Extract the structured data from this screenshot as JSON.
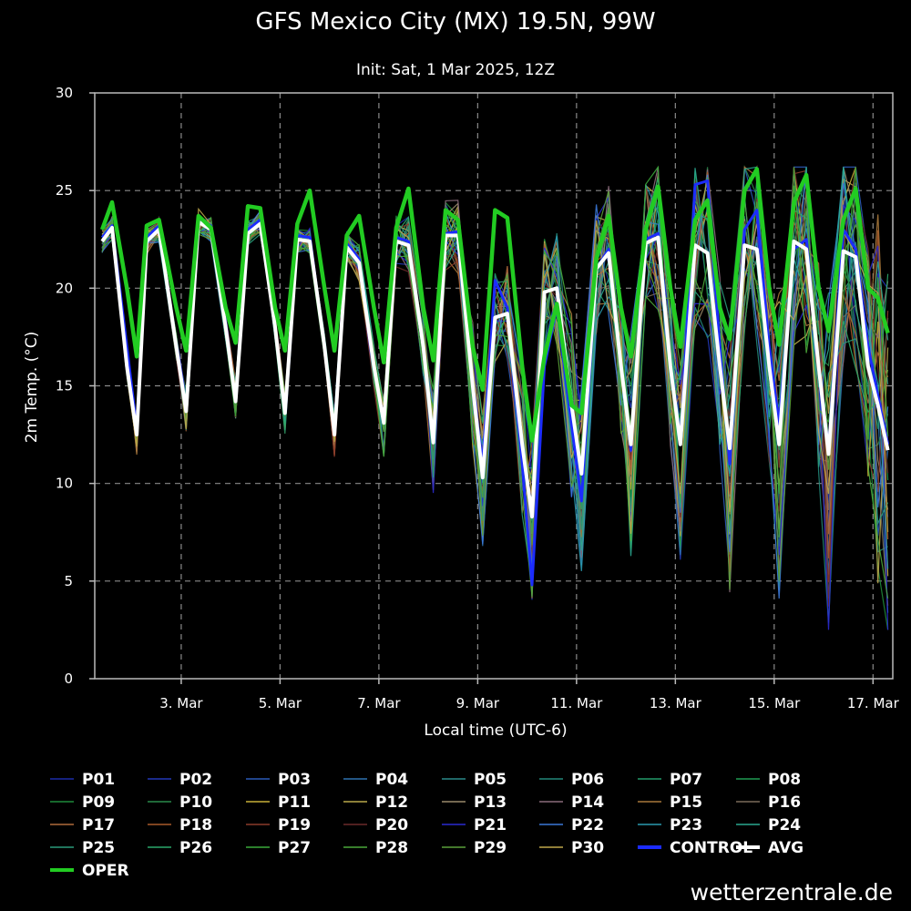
{
  "chart_data": {
    "type": "line",
    "title": "GFS Mexico City (MX) 19.5N, 99W",
    "subtitle": "Init: Sat, 1 Mar 2025, 12Z",
    "xlabel": "Local time (UTC-6)",
    "ylabel": "2m Temp. (°C)",
    "ylim": [
      0,
      30
    ],
    "xlim": [
      1.25,
      17.4
    ],
    "grid": true,
    "legend_placement": "bottom",
    "y_ticks": [
      "0",
      "5",
      "10",
      "15",
      "20",
      "25",
      "30"
    ],
    "x_ticks": [
      {
        "x": 3,
        "label": "3. Mar"
      },
      {
        "x": 5,
        "label": "5. Mar"
      },
      {
        "x": 7,
        "label": "7. Mar"
      },
      {
        "x": 9,
        "label": "9. Mar"
      },
      {
        "x": 11,
        "label": "11. Mar"
      },
      {
        "x": 13,
        "label": "13. Mar"
      },
      {
        "x": 15,
        "label": "15. Mar"
      },
      {
        "x": 17,
        "label": "17. Mar"
      }
    ],
    "x_grid": [
      3,
      5,
      7,
      9,
      11,
      13,
      15,
      17
    ],
    "series": [
      {
        "name": "AVG",
        "color": "#ffffff",
        "points": [
          [
            1.4,
            22.4
          ],
          [
            1.6,
            23.1
          ],
          [
            1.9,
            16
          ],
          [
            2.1,
            12.5
          ],
          [
            2.3,
            22.4
          ],
          [
            2.55,
            23.0
          ],
          [
            2.9,
            17
          ],
          [
            3.1,
            13.7
          ],
          [
            3.35,
            23.4
          ],
          [
            3.6,
            23
          ],
          [
            3.9,
            18
          ],
          [
            4.1,
            14.2
          ],
          [
            4.35,
            22.8
          ],
          [
            4.6,
            23.3
          ],
          [
            4.9,
            18
          ],
          [
            5.1,
            13.6
          ],
          [
            5.35,
            22.5
          ],
          [
            5.6,
            22.4
          ],
          [
            5.9,
            17
          ],
          [
            6.1,
            12.5
          ],
          [
            6.35,
            22.1
          ],
          [
            6.6,
            21.3
          ],
          [
            6.9,
            16
          ],
          [
            7.1,
            13.1
          ],
          [
            7.35,
            22.4
          ],
          [
            7.6,
            22.2
          ],
          [
            7.9,
            17
          ],
          [
            8.1,
            12.1
          ],
          [
            8.35,
            22.7
          ],
          [
            8.6,
            22.7
          ],
          [
            8.9,
            15
          ],
          [
            9.1,
            10.3
          ],
          [
            9.35,
            18.5
          ],
          [
            9.6,
            18.7
          ],
          [
            9.9,
            12
          ],
          [
            10.1,
            8.3
          ],
          [
            10.35,
            19.8
          ],
          [
            10.6,
            20
          ],
          [
            10.9,
            14
          ],
          [
            11.1,
            10.5
          ],
          [
            11.4,
            21
          ],
          [
            11.65,
            21.8
          ],
          [
            11.9,
            16
          ],
          [
            12.1,
            12
          ],
          [
            12.4,
            22.3
          ],
          [
            12.65,
            22.6
          ],
          [
            12.9,
            16
          ],
          [
            13.1,
            12
          ],
          [
            13.4,
            22.2
          ],
          [
            13.65,
            21.8
          ],
          [
            13.9,
            16
          ],
          [
            14.1,
            11.8
          ],
          [
            14.4,
            22.2
          ],
          [
            14.65,
            22
          ],
          [
            14.9,
            16
          ],
          [
            15.1,
            12
          ],
          [
            15.4,
            22.4
          ],
          [
            15.65,
            22
          ],
          [
            15.9,
            16
          ],
          [
            16.1,
            11.5
          ],
          [
            16.4,
            21.9
          ],
          [
            16.65,
            21.6
          ],
          [
            16.9,
            16
          ],
          [
            17.1,
            14
          ],
          [
            17.3,
            11.7
          ]
        ]
      },
      {
        "name": "OPER",
        "color": "#22cc22",
        "points": [
          [
            1.4,
            23
          ],
          [
            1.6,
            24.4
          ],
          [
            1.9,
            20
          ],
          [
            2.1,
            16.5
          ],
          [
            2.3,
            23.2
          ],
          [
            2.55,
            23.5
          ],
          [
            2.9,
            19
          ],
          [
            3.1,
            16.8
          ],
          [
            3.35,
            23.7
          ],
          [
            3.6,
            23.1
          ],
          [
            3.9,
            19
          ],
          [
            4.1,
            17.2
          ],
          [
            4.35,
            24.2
          ],
          [
            4.6,
            24.1
          ],
          [
            4.9,
            19
          ],
          [
            5.1,
            16.8
          ],
          [
            5.35,
            23.3
          ],
          [
            5.6,
            25
          ],
          [
            5.9,
            20
          ],
          [
            6.1,
            16.8
          ],
          [
            6.35,
            22.7
          ],
          [
            6.6,
            23.7
          ],
          [
            6.9,
            19
          ],
          [
            7.1,
            16.2
          ],
          [
            7.35,
            23.1
          ],
          [
            7.6,
            25.1
          ],
          [
            7.9,
            19
          ],
          [
            8.1,
            16.3
          ],
          [
            8.35,
            24
          ],
          [
            8.6,
            23.5
          ],
          [
            8.9,
            17
          ],
          [
            9.1,
            14.8
          ],
          [
            9.35,
            24
          ],
          [
            9.6,
            23.6
          ],
          [
            9.9,
            16
          ],
          [
            10.1,
            12.2
          ],
          [
            10.35,
            16.5
          ],
          [
            10.6,
            19.2
          ],
          [
            10.9,
            14
          ],
          [
            11.1,
            13.6
          ],
          [
            11.4,
            21.5
          ],
          [
            11.65,
            23.7
          ],
          [
            11.9,
            19
          ],
          [
            12.1,
            16.5
          ],
          [
            12.4,
            23
          ],
          [
            12.65,
            25.2
          ],
          [
            12.9,
            20
          ],
          [
            13.1,
            17
          ],
          [
            13.4,
            23.5
          ],
          [
            13.65,
            24.5
          ],
          [
            13.9,
            19
          ],
          [
            14.1,
            17.4
          ],
          [
            14.4,
            25
          ],
          [
            14.65,
            26.1
          ],
          [
            14.9,
            20
          ],
          [
            15.1,
            17.1
          ],
          [
            15.4,
            24.4
          ],
          [
            15.65,
            25.8
          ],
          [
            15.9,
            20
          ],
          [
            16.1,
            17.8
          ],
          [
            16.4,
            23.5
          ],
          [
            16.65,
            25.1
          ],
          [
            16.9,
            20
          ],
          [
            17.1,
            19.5
          ],
          [
            17.3,
            17.7
          ]
        ]
      },
      {
        "name": "CONTROL",
        "color": "#1c2cff",
        "points": [
          [
            1.4,
            22.6
          ],
          [
            1.6,
            23.2
          ],
          [
            1.9,
            17
          ],
          [
            2.1,
            12.8
          ],
          [
            2.3,
            22.6
          ],
          [
            2.55,
            23.2
          ],
          [
            2.9,
            17
          ],
          [
            3.1,
            13.8
          ],
          [
            3.35,
            23.6
          ],
          [
            3.6,
            23.2
          ],
          [
            3.9,
            18
          ],
          [
            4.1,
            14.3
          ],
          [
            4.35,
            23
          ],
          [
            4.6,
            23.5
          ],
          [
            4.9,
            18
          ],
          [
            5.1,
            13.7
          ],
          [
            5.35,
            22.7
          ],
          [
            5.6,
            22.6
          ],
          [
            5.9,
            17
          ],
          [
            6.1,
            12.6
          ],
          [
            6.35,
            22.3
          ],
          [
            6.6,
            21.5
          ],
          [
            6.9,
            16
          ],
          [
            7.1,
            13.2
          ],
          [
            7.35,
            22.6
          ],
          [
            7.6,
            22.4
          ],
          [
            7.9,
            17
          ],
          [
            8.1,
            12.2
          ],
          [
            8.35,
            22.8
          ],
          [
            8.6,
            22.9
          ],
          [
            8.9,
            15
          ],
          [
            9.1,
            11
          ],
          [
            9.35,
            20.4
          ],
          [
            9.6,
            19
          ],
          [
            9.9,
            11
          ],
          [
            10.1,
            4.8
          ],
          [
            10.35,
            16
          ],
          [
            10.6,
            19
          ],
          [
            10.9,
            13
          ],
          [
            11.1,
            9.1
          ],
          [
            11.4,
            21
          ],
          [
            11.65,
            22
          ],
          [
            11.9,
            16
          ],
          [
            12.1,
            11.7
          ],
          [
            12.4,
            22.5
          ],
          [
            12.65,
            22.8
          ],
          [
            12.9,
            16
          ],
          [
            13.1,
            12
          ],
          [
            13.4,
            25.3
          ],
          [
            13.65,
            25.5
          ],
          [
            13.9,
            17
          ],
          [
            14.1,
            11
          ],
          [
            14.4,
            23
          ],
          [
            14.65,
            24
          ],
          [
            14.9,
            17
          ],
          [
            15.1,
            13
          ],
          [
            15.4,
            22
          ],
          [
            15.65,
            22.5
          ],
          [
            15.9,
            16
          ],
          [
            16.1,
            11.8
          ],
          [
            16.4,
            23
          ],
          [
            16.65,
            22
          ],
          [
            16.9,
            17
          ],
          [
            17.1,
            14.5
          ],
          [
            17.3,
            12
          ]
        ]
      }
    ],
    "members": [
      "P01",
      "P02",
      "P03",
      "P04",
      "P05",
      "P06",
      "P07",
      "P08",
      "P09",
      "P10",
      "P11",
      "P12",
      "P13",
      "P14",
      "P15",
      "P16",
      "P17",
      "P18",
      "P19",
      "P20",
      "P21",
      "P22",
      "P23",
      "P24",
      "P25",
      "P26",
      "P27",
      "P28",
      "P29",
      "P30"
    ],
    "member_colors": [
      "#1c2ca8",
      "#2238b8",
      "#2a5ab8",
      "#2f73b0",
      "#2a8a8a",
      "#23887a",
      "#229a6a",
      "#1f9b52",
      "#1f8b3a",
      "#2a8a4a",
      "#c8b038",
      "#b9a84a",
      "#9a8a6a",
      "#8a6a7a",
      "#a8783a",
      "#7a6a5a",
      "#b06a3a",
      "#a85a2a",
      "#8a3a2a",
      "#6a2a2a",
      "#2a2ad0",
      "#3a78d8",
      "#2a9ab0",
      "#2aa890",
      "#2a9a7a",
      "#2aa86a",
      "#3aaa3a",
      "#4aa83a",
      "#5aa03a",
      "#c0a84a"
    ],
    "legend": [
      {
        "label": "P01",
        "color": "#1c2ca8",
        "kind": "member"
      },
      {
        "label": "P02",
        "color": "#2238b8",
        "kind": "member"
      },
      {
        "label": "P03",
        "color": "#2a5ab8",
        "kind": "member"
      },
      {
        "label": "P04",
        "color": "#2f73b0",
        "kind": "member"
      },
      {
        "label": "P05",
        "color": "#2a8a8a",
        "kind": "member"
      },
      {
        "label": "P06",
        "color": "#23887a",
        "kind": "member"
      },
      {
        "label": "P07",
        "color": "#229a6a",
        "kind": "member"
      },
      {
        "label": "P08",
        "color": "#1f9b52",
        "kind": "member"
      },
      {
        "label": "P09",
        "color": "#1f8b3a",
        "kind": "member"
      },
      {
        "label": "P10",
        "color": "#2a8a4a",
        "kind": "member"
      },
      {
        "label": "P11",
        "color": "#c8b038",
        "kind": "member"
      },
      {
        "label": "P12",
        "color": "#b9a84a",
        "kind": "member"
      },
      {
        "label": "P13",
        "color": "#9a8a6a",
        "kind": "member"
      },
      {
        "label": "P14",
        "color": "#8a6a7a",
        "kind": "member"
      },
      {
        "label": "P15",
        "color": "#a8783a",
        "kind": "member"
      },
      {
        "label": "P16",
        "color": "#7a6a5a",
        "kind": "member"
      },
      {
        "label": "P17",
        "color": "#b06a3a",
        "kind": "member"
      },
      {
        "label": "P18",
        "color": "#a85a2a",
        "kind": "member"
      },
      {
        "label": "P19",
        "color": "#8a3a2a",
        "kind": "member"
      },
      {
        "label": "P20",
        "color": "#6a2a2a",
        "kind": "member"
      },
      {
        "label": "P21",
        "color": "#2a2ad0",
        "kind": "member"
      },
      {
        "label": "P22",
        "color": "#3a78d8",
        "kind": "member"
      },
      {
        "label": "P23",
        "color": "#2a9ab0",
        "kind": "member"
      },
      {
        "label": "P24",
        "color": "#2aa890",
        "kind": "member"
      },
      {
        "label": "P25",
        "color": "#2a9a7a",
        "kind": "member"
      },
      {
        "label": "P26",
        "color": "#2aa86a",
        "kind": "member"
      },
      {
        "label": "P27",
        "color": "#3aaa3a",
        "kind": "member"
      },
      {
        "label": "P28",
        "color": "#4aa83a",
        "kind": "member"
      },
      {
        "label": "P29",
        "color": "#5aa03a",
        "kind": "member"
      },
      {
        "label": "P30",
        "color": "#c0a84a",
        "kind": "member"
      },
      {
        "label": "CONTROL",
        "color": "#1c2cff",
        "kind": "control"
      },
      {
        "label": "AVG",
        "color": "#ffffff",
        "kind": "avg"
      },
      {
        "label": "OPER",
        "color": "#22cc22",
        "kind": "oper"
      }
    ]
  },
  "credit": "wetterzentrale.de"
}
